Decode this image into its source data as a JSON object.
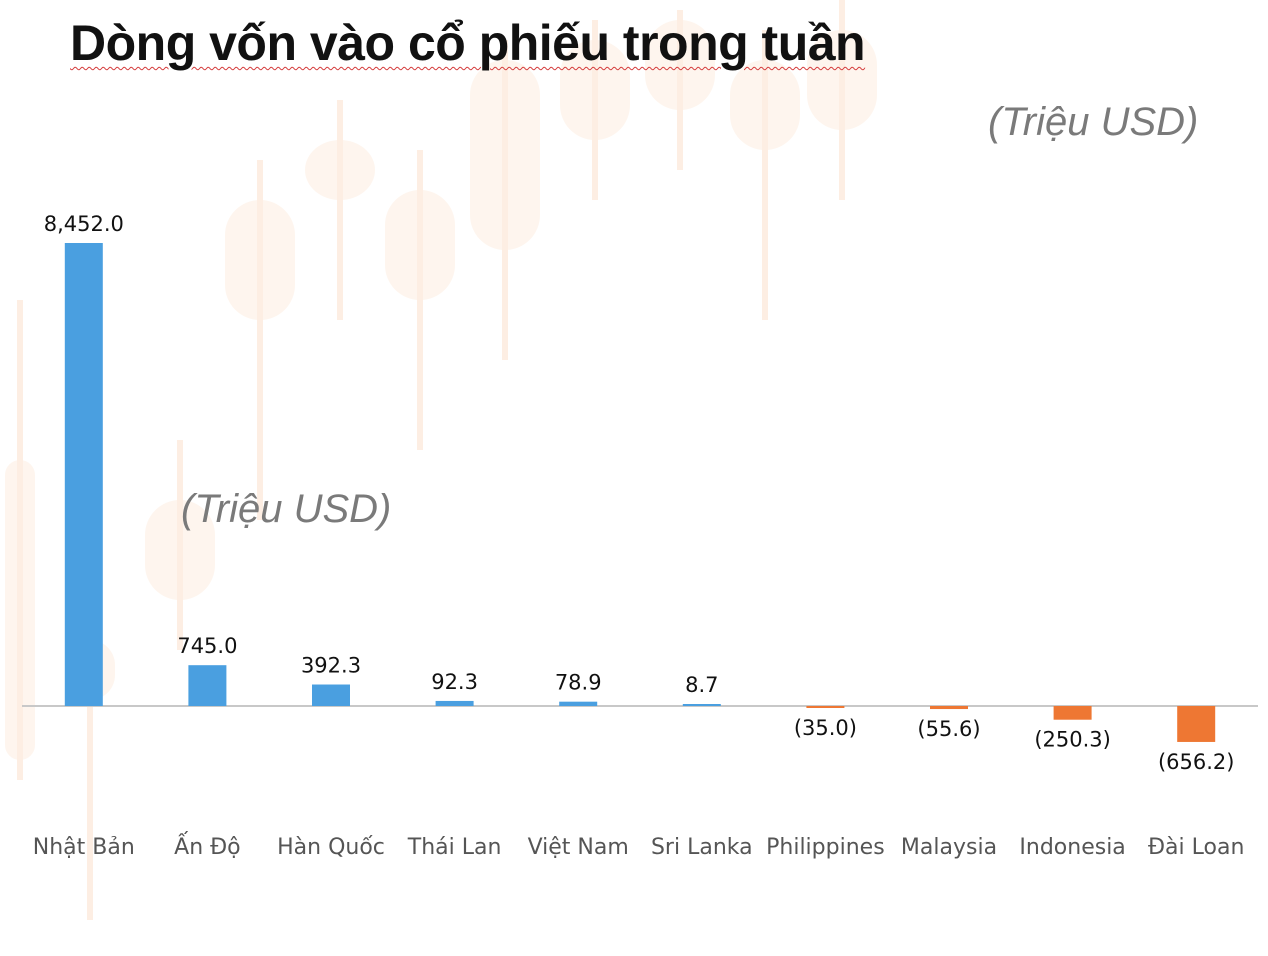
{
  "title": "Dòng vốn vào cổ phiếu trong tuần",
  "unit_top": "(Triệu USD)",
  "unit_mid": "(Triệu USD)",
  "colors": {
    "positive": "#4a9fe0",
    "negative": "#ee7733",
    "axis": "#c8c8c8",
    "background_motif": "#fdeee3"
  },
  "chart_data": {
    "type": "bar",
    "categories": [
      "Nhật Bản",
      "Ấn Độ",
      "Hàn Quốc",
      "Thái Lan",
      "Việt Nam",
      "Sri Lanka",
      "Philippines",
      "Malaysia",
      "Indonesia",
      "Đài Loan"
    ],
    "values": [
      8452.0,
      745.0,
      392.3,
      92.3,
      78.9,
      8.7,
      -35.0,
      -55.6,
      -250.3,
      -656.2
    ],
    "data_labels": [
      "8,452.0",
      "745.0",
      "392.3",
      "92.3",
      "78.9",
      "8.7",
      "(35.0)",
      "(55.6)",
      "(250.3)",
      "(656.2)"
    ],
    "title": "Dòng vốn vào cổ phiếu trong tuần",
    "xlabel": "",
    "ylabel": "",
    "grid": false,
    "legend": "none"
  }
}
